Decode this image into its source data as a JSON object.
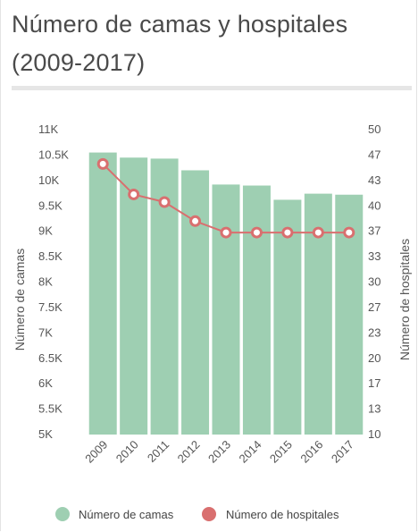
{
  "title": "Número de camas y hospitales (2009-2017)",
  "colors": {
    "bars": "#9ecfb2",
    "line": "#d96f6f",
    "marker_fill": "#ffffff"
  },
  "chart_data": {
    "type": "bar+line",
    "title": "Número de camas y hospitales (2009-2017)",
    "categories": [
      "2009",
      "2010",
      "2011",
      "2012",
      "2013",
      "2014",
      "2015",
      "2016",
      "2017"
    ],
    "series": [
      {
        "name": "Número de camas",
        "type": "bar",
        "axis": "left",
        "values": [
          10550,
          10450,
          10430,
          10200,
          9920,
          9900,
          9620,
          9740,
          9720
        ]
      },
      {
        "name": "Número de hospitales",
        "type": "line",
        "axis": "right",
        "values": [
          45.5,
          41.5,
          40.5,
          38,
          36.5,
          36.5,
          36.5,
          36.5,
          36.5
        ]
      }
    ],
    "y_left": {
      "label": "Número de camas",
      "range": [
        5000,
        11000
      ],
      "ticks": [
        5000,
        5500,
        6000,
        6500,
        7000,
        7500,
        8000,
        8500,
        9000,
        9500,
        10000,
        10500,
        11000
      ],
      "tick_labels": [
        "5K",
        "5.5K",
        "6K",
        "6.5K",
        "7K",
        "7.5K",
        "8K",
        "8.5K",
        "9K",
        "9.5K",
        "10K",
        "10.5K",
        "11K"
      ]
    },
    "y_right": {
      "label": "Número de hospitales",
      "range": [
        10,
        50
      ],
      "ticks": [
        10,
        13,
        17,
        20,
        23,
        27,
        30,
        33,
        37,
        40,
        43,
        47,
        50
      ],
      "tick_labels": [
        "10",
        "13",
        "17",
        "20",
        "23",
        "27",
        "30",
        "33",
        "37",
        "40",
        "43",
        "47",
        "50"
      ]
    },
    "grid": false,
    "legend": "bottom"
  }
}
